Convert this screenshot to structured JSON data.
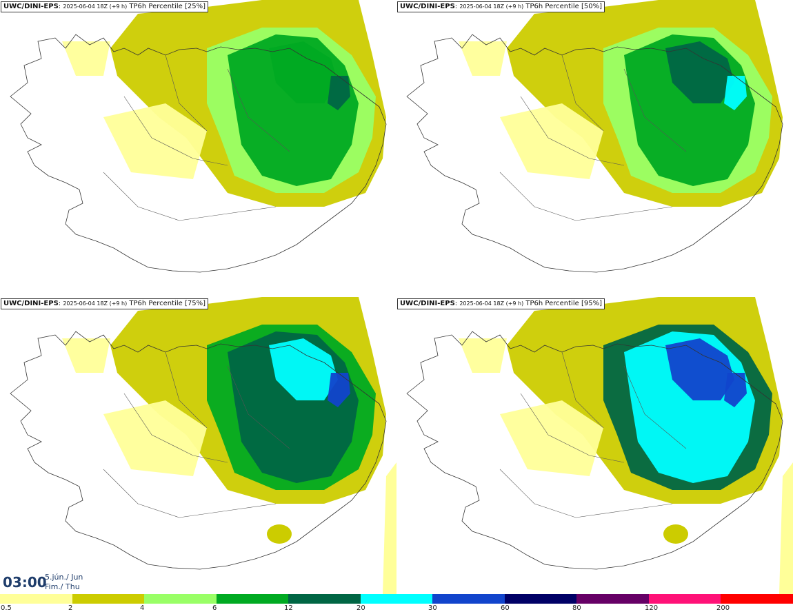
{
  "panels": [
    {
      "model": "UWC/DINI-EPS",
      "meta": "2025-06-04 18Z (+9 h)",
      "field": "TP6h Percentile [25%]",
      "level": 0
    },
    {
      "model": "UWC/DINI-EPS",
      "meta": "2025-06-04 18Z (+9 h)",
      "field": "TP6h Percentile [50%]",
      "level": 1
    },
    {
      "model": "UWC/DINI-EPS",
      "meta": "2025-06-04 18Z (+9 h)",
      "field": "TP6h Percentile [75%]",
      "level": 2
    },
    {
      "model": "UWC/DINI-EPS",
      "meta": "2025-06-04 18Z (+9 h)",
      "field": "TP6h Percentile [95%]",
      "level": 3
    }
  ],
  "time": {
    "main": "03:00",
    "date_line1": "5.jún./ Jun",
    "date_line2": "Fim./ Thu"
  },
  "legend": {
    "colors": [
      "#ffff99",
      "#cccc00",
      "#99ff66",
      "#00aa22",
      "#006644",
      "#00ffff",
      "#1144cc",
      "#000066",
      "#660066",
      "#ff1177",
      "#ff0000"
    ],
    "ticks": [
      "0.5",
      "2",
      "4",
      "6",
      "12",
      "20",
      "30",
      "60",
      "80",
      "120",
      "200"
    ]
  }
}
